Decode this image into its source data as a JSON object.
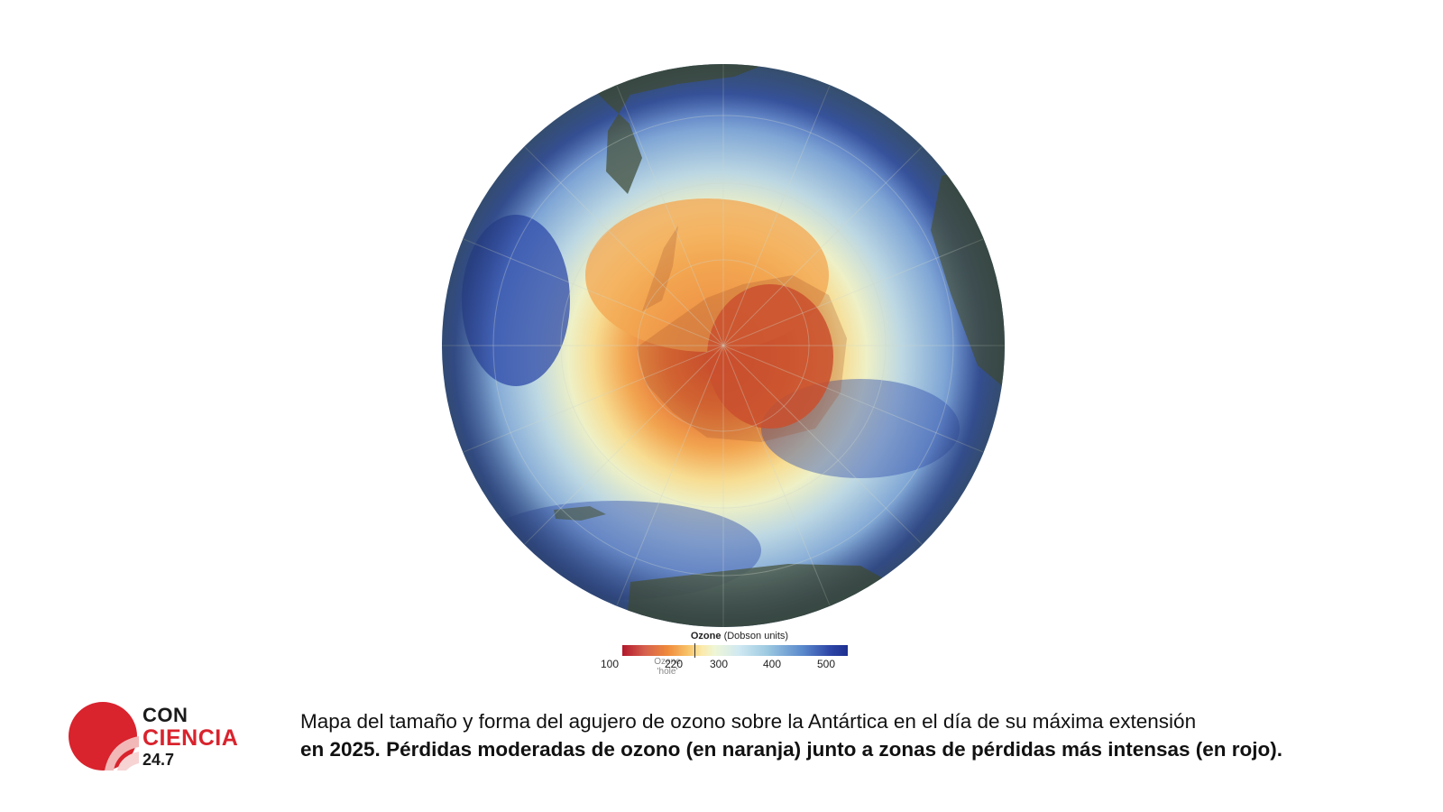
{
  "map": {
    "projection": "south-polar orthographic",
    "region": "Antártica",
    "dominant_colors": {
      "hole_core": "#d2462a",
      "hole_moderate": "#f0a24a",
      "transition": "#f4efc0",
      "normal": "#b9d6e6",
      "high": "#2f4ea8",
      "land": "#5b6a58"
    }
  },
  "legend": {
    "title_bold": "Ozone",
    "title_rest": "(Dobson units)",
    "ticks": [
      "100",
      "220",
      "300",
      "400",
      "500"
    ],
    "hole_label_line1": "Ozone",
    "hole_label_line2": "'hole'"
  },
  "logo": {
    "line1": "CON",
    "line2": "CIENCIA",
    "line3": "24.7",
    "color": "#d9232d"
  },
  "caption": {
    "line1": "Mapa del tamaño y forma del agujero de ozono sobre la Antártica en el día de su máxima extensión",
    "line2": "en 2025. Pérdidas moderadas de ozono (en naranja) junto a zonas de pérdidas más intensas (en rojo)."
  }
}
